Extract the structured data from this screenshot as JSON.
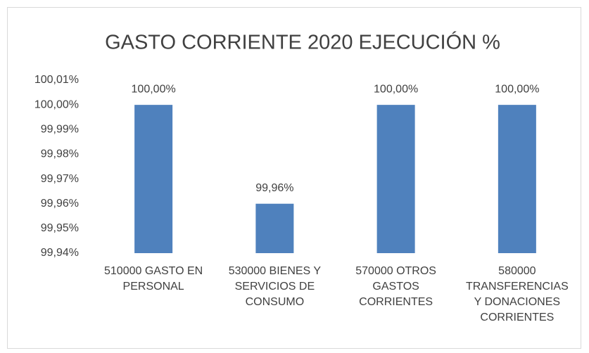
{
  "chart_data": {
    "type": "bar",
    "title": "GASTO CORRIENTE 2020 EJECUCIÓN %",
    "categories": [
      "510000 GASTO EN PERSONAL",
      "530000 BIENES Y SERVICIOS DE CONSUMO",
      "570000 OTROS GASTOS CORRIENTES",
      "580000 TRANSFERENCIAS Y DONACIONES CORRIENTES"
    ],
    "values": [
      100,
      99.96,
      100,
      100
    ],
    "value_labels": [
      "100,00%",
      "99,96%",
      "100,00%",
      "100,00%"
    ],
    "color": "#4f81bd",
    "ylim": [
      99.94,
      100.01
    ],
    "yticks": [
      {
        "value": 99.94,
        "label": "99,94%"
      },
      {
        "value": 99.95,
        "label": "99,95%"
      },
      {
        "value": 99.96,
        "label": "99,96%"
      },
      {
        "value": 99.97,
        "label": "99,97%"
      },
      {
        "value": 99.98,
        "label": "99,98%"
      },
      {
        "value": 99.99,
        "label": "99,99%"
      },
      {
        "value": 100,
        "label": "100,00%"
      },
      {
        "value": 100.01,
        "label": "100,01%"
      }
    ],
    "grid": false
  }
}
